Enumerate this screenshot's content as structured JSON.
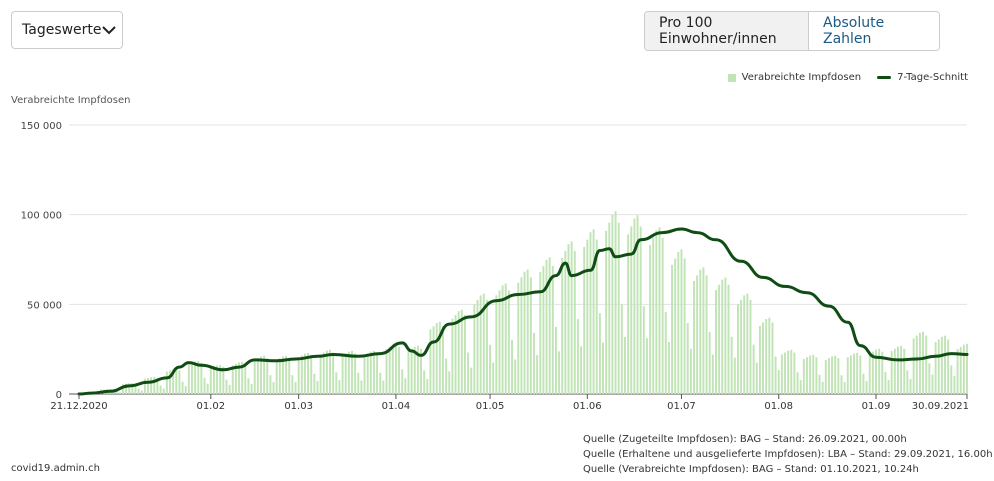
{
  "controls": {
    "dropdown_value": "Tageswerte",
    "toggle_options": [
      "Pro 100 Einwohner/innen",
      "Absolute Zahlen"
    ],
    "toggle_selected": "Pro 100 Einwohner/innen"
  },
  "legend": {
    "bars_label": "Verabreichte Impfdosen",
    "line_label": "7-Tage-Schnitt"
  },
  "sources": [
    "Quelle (Zugeteilte Impfdosen): BAG – Stand: 26.09.2021, 00.00h",
    "Quelle (Erhaltene und ausgelieferte Impfdosen): LBA – Stand: 29.09.2021, 16.00h",
    "Quelle (Verabreichte Impfdosen): BAG – Stand: 01.10.2021, 10.24h"
  ],
  "site": "covid19.admin.ch",
  "colors": {
    "bar": "#c1e4b6",
    "line": "#0f4d14",
    "grid": "#e3e3e3",
    "link": "#1b5a86"
  },
  "chart_data": {
    "type": "bar",
    "ylabel": "Verabreichte Impfdosen",
    "ylim": [
      0,
      150000
    ],
    "y_ticks": [
      0,
      50000,
      100000,
      150000
    ],
    "y_tick_labels": [
      "0",
      "50 000",
      "100 000",
      "150 000"
    ],
    "x_start": "2020-12-21",
    "x_end": "2021-09-30",
    "x_ticks": [
      "2020-12-21",
      "2021-02-01",
      "2021-03-01",
      "2021-04-01",
      "2021-05-01",
      "2021-06-01",
      "2021-07-01",
      "2021-08-01",
      "2021-09-01",
      "2021-09-30"
    ],
    "x_tick_labels": [
      "21.12.2020",
      "01.02",
      "01.03",
      "01.04",
      "01.05",
      "01.06",
      "01.07",
      "01.08",
      "01.09",
      "30.09.2021"
    ],
    "series": [
      {
        "name": "Verabreichte Impfdosen",
        "kind": "bar",
        "weekday_pattern": [
          1.0,
          1.05,
          1.1,
          1.12,
          1.05,
          0.55,
          0.35
        ],
        "weekly_level": [
          [
            "2020-12-21",
            900
          ],
          [
            "2020-12-28",
            2500
          ],
          [
            "2021-01-04",
            5500
          ],
          [
            "2021-01-11",
            8500
          ],
          [
            "2021-01-18",
            12500
          ],
          [
            "2021-01-25",
            16500
          ],
          [
            "2021-02-01",
            14500
          ],
          [
            "2021-02-08",
            16000
          ],
          [
            "2021-02-15",
            19000
          ],
          [
            "2021-02-22",
            19000
          ],
          [
            "2021-03-01",
            20500
          ],
          [
            "2021-03-08",
            22000
          ],
          [
            "2021-03-15",
            21500
          ],
          [
            "2021-03-22",
            21500
          ],
          [
            "2021-03-29",
            25000
          ],
          [
            "2021-04-05",
            24000
          ],
          [
            "2021-04-12",
            36000
          ],
          [
            "2021-04-19",
            42000
          ],
          [
            "2021-04-26",
            50000
          ],
          [
            "2021-05-03",
            55000
          ],
          [
            "2021-05-10",
            62000
          ],
          [
            "2021-05-17",
            68000
          ],
          [
            "2021-05-24",
            76000
          ],
          [
            "2021-05-31",
            82000
          ],
          [
            "2021-06-07",
            91000
          ],
          [
            "2021-06-14",
            89000
          ],
          [
            "2021-06-21",
            83000
          ],
          [
            "2021-06-28",
            72000
          ],
          [
            "2021-07-05",
            63000
          ],
          [
            "2021-07-12",
            58000
          ],
          [
            "2021-07-19",
            50000
          ],
          [
            "2021-07-26",
            38000
          ],
          [
            "2021-08-02",
            22000
          ],
          [
            "2021-08-09",
            19500
          ],
          [
            "2021-08-16",
            19000
          ],
          [
            "2021-08-23",
            20500
          ],
          [
            "2021-08-30",
            22500
          ],
          [
            "2021-09-06",
            24000
          ],
          [
            "2021-09-13",
            31000
          ],
          [
            "2021-09-20",
            29000
          ],
          [
            "2021-09-27",
            25000
          ]
        ]
      },
      {
        "name": "7-Tage-Schnitt",
        "kind": "line",
        "points": [
          [
            "2020-12-21",
            0
          ],
          [
            "2020-12-25",
            500
          ],
          [
            "2020-12-31",
            1500
          ],
          [
            "2021-01-06",
            4500
          ],
          [
            "2021-01-12",
            6500
          ],
          [
            "2021-01-18",
            9000
          ],
          [
            "2021-01-22",
            15000
          ],
          [
            "2021-01-25",
            17500
          ],
          [
            "2021-01-29",
            16000
          ],
          [
            "2021-02-05",
            13500
          ],
          [
            "2021-02-10",
            15000
          ],
          [
            "2021-02-15",
            19000
          ],
          [
            "2021-02-22",
            18500
          ],
          [
            "2021-02-28",
            19500
          ],
          [
            "2021-03-07",
            21000
          ],
          [
            "2021-03-12",
            22000
          ],
          [
            "2021-03-20",
            21000
          ],
          [
            "2021-03-27",
            22500
          ],
          [
            "2021-04-03",
            28500
          ],
          [
            "2021-04-06",
            24000
          ],
          [
            "2021-04-09",
            21500
          ],
          [
            "2021-04-13",
            29000
          ],
          [
            "2021-04-18",
            39000
          ],
          [
            "2021-04-25",
            43000
          ],
          [
            "2021-05-03",
            52000
          ],
          [
            "2021-05-10",
            55500
          ],
          [
            "2021-05-17",
            57000
          ],
          [
            "2021-05-22",
            66000
          ],
          [
            "2021-05-25",
            73000
          ],
          [
            "2021-05-27",
            66000
          ],
          [
            "2021-06-02",
            69000
          ],
          [
            "2021-06-05",
            80000
          ],
          [
            "2021-06-08",
            81000
          ],
          [
            "2021-06-10",
            76500
          ],
          [
            "2021-06-15",
            78000
          ],
          [
            "2021-06-18",
            86000
          ],
          [
            "2021-06-25",
            90000
          ],
          [
            "2021-07-01",
            92000
          ],
          [
            "2021-07-06",
            90000
          ],
          [
            "2021-07-12",
            86000
          ],
          [
            "2021-07-20",
            74000
          ],
          [
            "2021-07-27",
            65000
          ],
          [
            "2021-08-03",
            60000
          ],
          [
            "2021-08-10",
            56500
          ],
          [
            "2021-08-17",
            49000
          ],
          [
            "2021-08-23",
            40000
          ],
          [
            "2021-08-27",
            27000
          ],
          [
            "2021-09-01",
            20500
          ],
          [
            "2021-09-08",
            19000
          ],
          [
            "2021-09-14",
            19500
          ],
          [
            "2021-09-20",
            21000
          ],
          [
            "2021-09-25",
            22500
          ],
          [
            "2021-09-30",
            22000
          ]
        ]
      }
    ]
  }
}
